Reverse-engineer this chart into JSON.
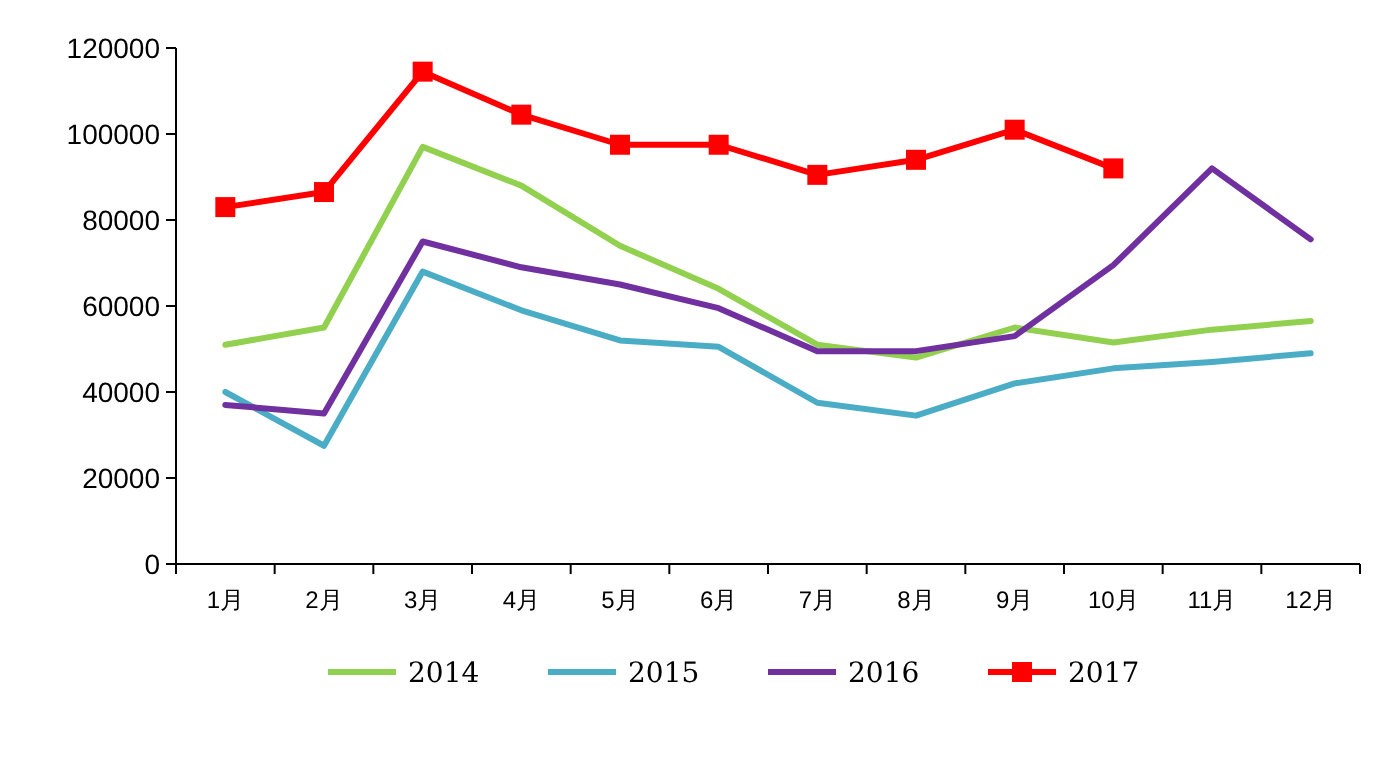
{
  "chart_data": {
    "type": "line",
    "categories": [
      "1月",
      "2月",
      "3月",
      "4月",
      "5月",
      "6月",
      "7月",
      "8月",
      "9月",
      "10月",
      "11月",
      "12月"
    ],
    "ylim": [
      0,
      120000
    ],
    "yticks": [
      0,
      20000,
      40000,
      60000,
      80000,
      100000,
      120000
    ],
    "grid": false,
    "legend": "bottom",
    "series": [
      {
        "name": "2014",
        "color": "#92d050",
        "marker": "none",
        "values": [
          51000,
          55000,
          97000,
          88000,
          74000,
          64000,
          51000,
          48000,
          55000,
          51500,
          54500,
          56500
        ]
      },
      {
        "name": "2015",
        "color": "#4bacc6",
        "marker": "none",
        "values": [
          40000,
          27500,
          68000,
          59000,
          52000,
          50500,
          37500,
          34500,
          42000,
          45500,
          47000,
          49000
        ]
      },
      {
        "name": "2016",
        "color": "#7030a0",
        "marker": "none",
        "values": [
          37000,
          35000,
          75000,
          69000,
          65000,
          59500,
          49500,
          49500,
          53000,
          69500,
          92000,
          75500
        ]
      },
      {
        "name": "2017",
        "color": "#ff0000",
        "marker": "square",
        "values": [
          83000,
          86500,
          114500,
          104500,
          97500,
          97500,
          90500,
          94000,
          101000,
          92000,
          null,
          null
        ]
      }
    ]
  }
}
